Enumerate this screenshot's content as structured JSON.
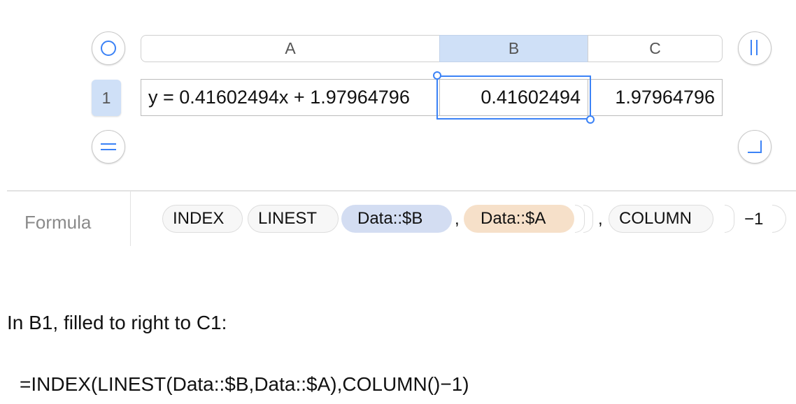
{
  "table": {
    "columns": [
      "A",
      "B",
      "C"
    ],
    "selected_column": "B",
    "rows": [
      {
        "label": "1",
        "cells": [
          "y = 0.41602494x + 1.97964796",
          "0.41602494",
          "1.97964796"
        ]
      }
    ],
    "selected_cell": "B1",
    "accent_color": "#3b82f6",
    "selected_header_color": "#cfe0f7"
  },
  "formula_bar": {
    "label": "Formula",
    "tokens": {
      "index": "INDEX",
      "linest": "LINEST",
      "ref_b": "Data::$B",
      "comma": ",",
      "ref_a": "Data::$A",
      "column": "COLUMN",
      "minus_one": "−1"
    },
    "ref_b_color": "#d3ddf2",
    "ref_a_color": "#f6e0c9"
  },
  "caption": "In B1, filled to right to C1:",
  "formula_text": "=INDEX(LINEST(Data::$B,Data::$A),COLUMN()−1)"
}
